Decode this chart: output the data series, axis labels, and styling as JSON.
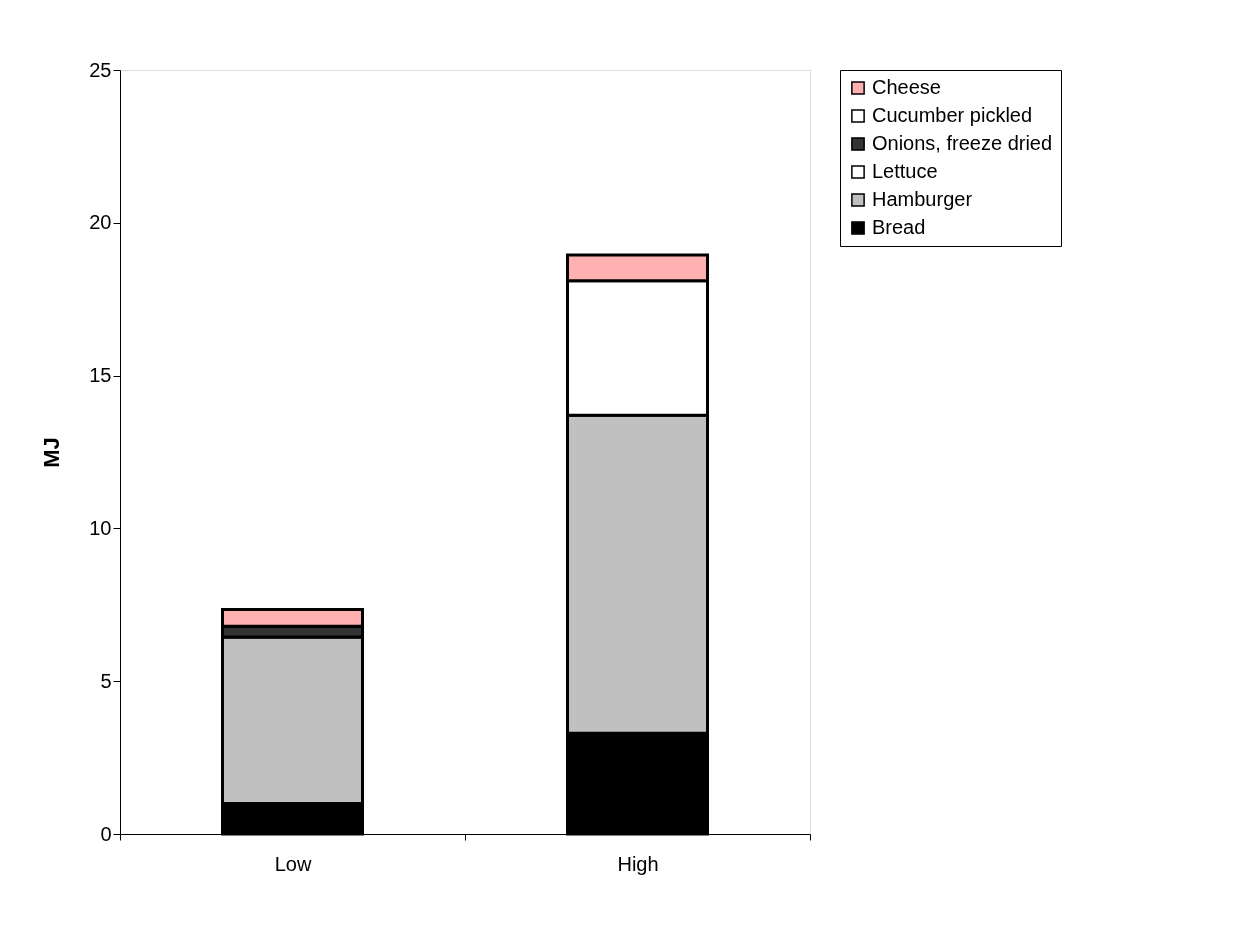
{
  "chart_data": {
    "type": "bar",
    "stacked": true,
    "ylabel": "MJ",
    "categories": [
      "Low",
      "High"
    ],
    "series": [
      {
        "name": "Bread",
        "color": "#000000",
        "values": [
          1.0,
          3.3
        ]
      },
      {
        "name": "Hamburger",
        "color": "#c0c0c0",
        "values": [
          5.45,
          10.4
        ]
      },
      {
        "name": "Lettuce",
        "color": "#ffffff",
        "values": [
          0,
          4.4
        ]
      },
      {
        "name": "Onions, freeze dried",
        "color": "#333333",
        "values": [
          0.35,
          null
        ]
      },
      {
        "name": "Cucumber pickled",
        "color": "#ffffff",
        "values": [
          0,
          null
        ]
      },
      {
        "name": "Cheese",
        "color": "#ffb0b0",
        "values": [
          0.55,
          0.85
        ]
      }
    ],
    "ylim": [
      0,
      25
    ],
    "yticks": [
      0,
      5,
      10,
      15,
      20,
      25
    ],
    "grid": false,
    "legend": "right"
  }
}
